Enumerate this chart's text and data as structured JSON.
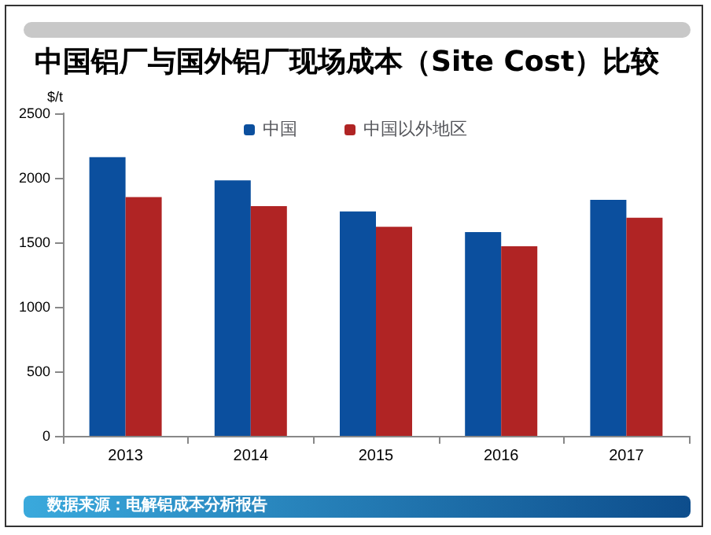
{
  "chart_data": {
    "type": "bar",
    "title": "中国铝厂与国外铝厂现场成本（Site Cost）比较",
    "ylabel": "$/t",
    "categories": [
      "2013",
      "2014",
      "2015",
      "2016",
      "2017"
    ],
    "series": [
      {
        "name": "中国",
        "color": "#0b4f9e",
        "values": [
          2160,
          1980,
          1740,
          1580,
          1830
        ]
      },
      {
        "name": "中国以外地区",
        "color": "#b02424",
        "values": [
          1850,
          1780,
          1620,
          1470,
          1690
        ]
      }
    ],
    "ylim": [
      0,
      2500
    ],
    "yticks": [
      0,
      500,
      1000,
      1500,
      2000,
      2500
    ],
    "grid": false,
    "legend": "top",
    "annotations": [
      "数据来源：电解铝成本分析报告"
    ]
  }
}
